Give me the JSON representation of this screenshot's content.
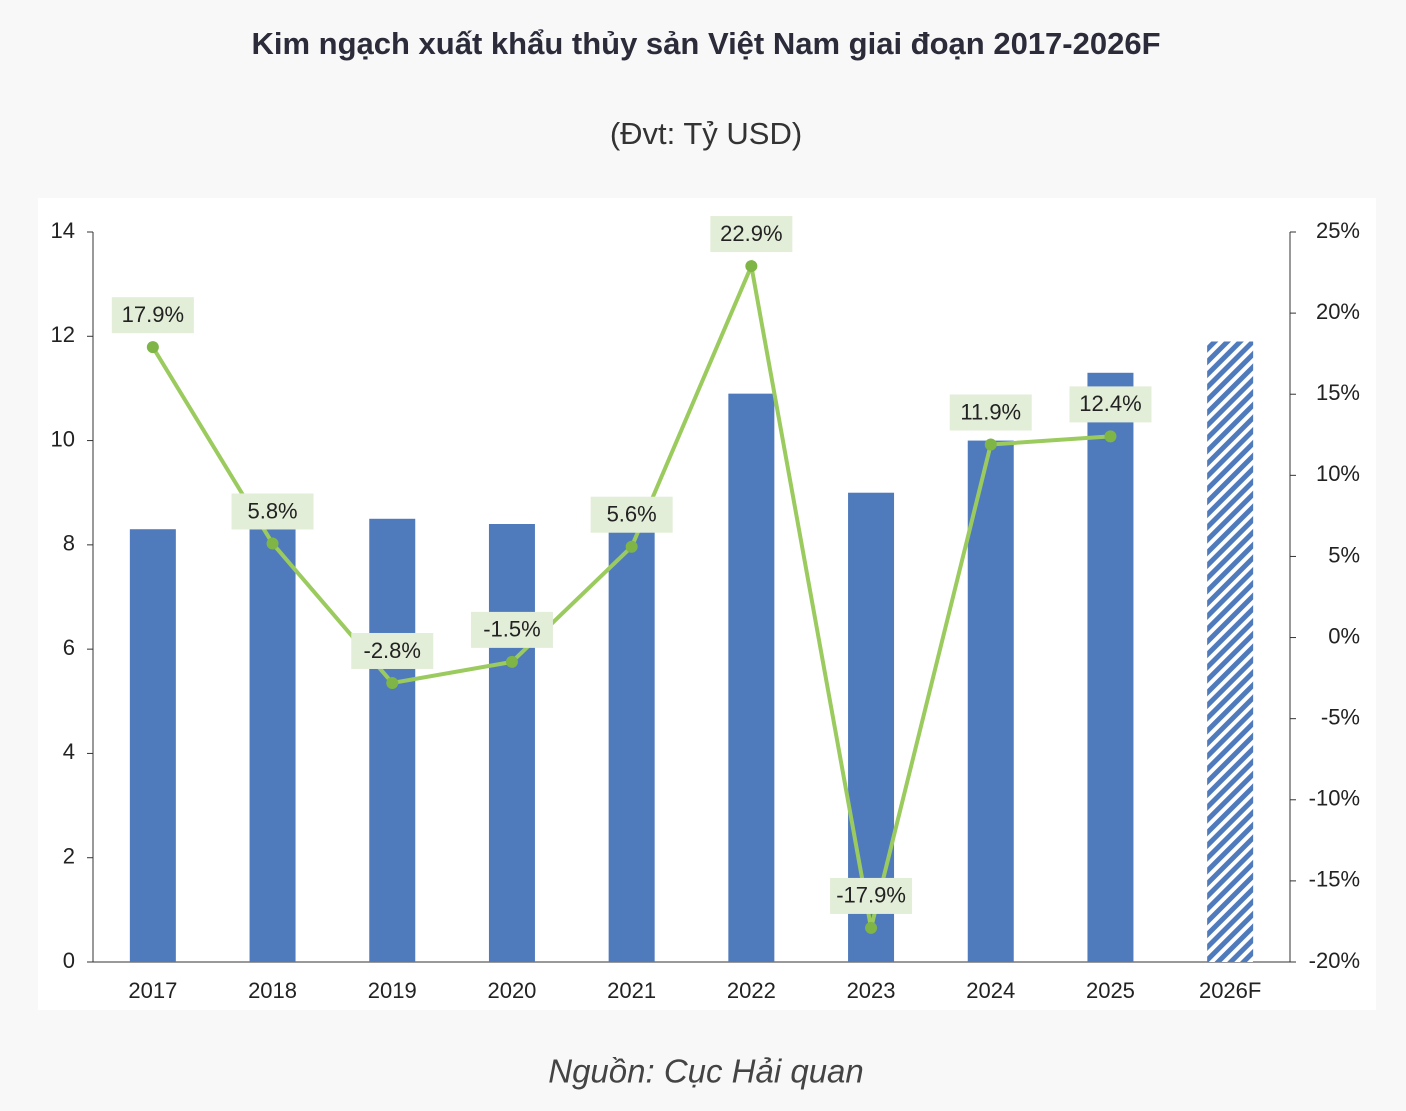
{
  "chart_data": {
    "type": "bar-line",
    "title": "Kim ngạch xuất khẩu thủy sản Việt Nam giai đoạn 2017-2026F",
    "subtitle": "(Đvt: Tỷ USD)",
    "source": "Nguồn: Cục Hải quan",
    "categories": [
      "2017",
      "2018",
      "2019",
      "2020",
      "2021",
      "2022",
      "2023",
      "2024",
      "2025",
      "2026F"
    ],
    "series": [
      {
        "type": "bar",
        "color": "#4f7bbd",
        "values": [
          8.3,
          8.8,
          8.5,
          8.4,
          8.9,
          10.9,
          9.0,
          10.0,
          11.3,
          11.9
        ],
        "hatched": [
          false,
          false,
          false,
          false,
          false,
          false,
          false,
          false,
          false,
          true
        ]
      },
      {
        "type": "line",
        "axis": "y2",
        "color": "#9bcb5e",
        "label_color": "#e3eed8",
        "values": [
          17.9,
          5.8,
          -2.8,
          -1.5,
          5.6,
          22.9,
          -17.9,
          11.9,
          12.4,
          null
        ],
        "value_labels": [
          "17.9%",
          "5.8%",
          "-2.8%",
          "-1.5%",
          "5.6%",
          "22.9%",
          "-17.9%",
          "11.9%",
          "12.4%",
          null
        ]
      }
    ],
    "ylim": [
      0,
      14
    ],
    "yticks": [
      0,
      2,
      4,
      6,
      8,
      10,
      12,
      14
    ],
    "y2lim": [
      -20,
      25
    ],
    "y2ticks": [
      {
        "value": -20,
        "label": "-20%"
      },
      {
        "value": -15,
        "label": "-15%"
      },
      {
        "value": -10,
        "label": "-10%"
      },
      {
        "value": -5,
        "label": "-5%"
      },
      {
        "value": 0,
        "label": "0%"
      },
      {
        "value": 5,
        "label": "5%"
      },
      {
        "value": 10,
        "label": "10%"
      },
      {
        "value": 15,
        "label": "15%"
      },
      {
        "value": 20,
        "label": "20%"
      },
      {
        "value": 25,
        "label": "25%"
      }
    ]
  }
}
